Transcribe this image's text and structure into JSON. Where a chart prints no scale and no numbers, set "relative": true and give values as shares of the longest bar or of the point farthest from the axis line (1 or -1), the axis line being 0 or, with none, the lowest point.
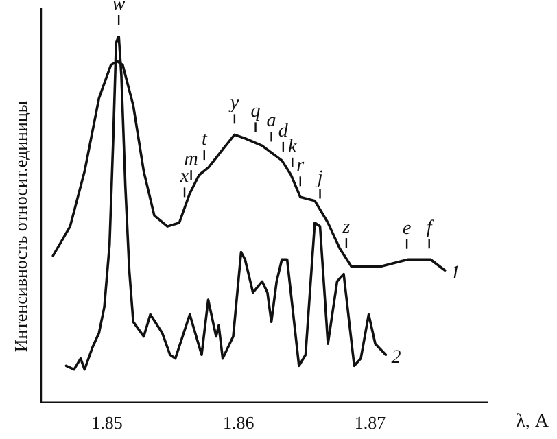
{
  "chart_data": {
    "type": "line",
    "relative": true,
    "xlabel": "λ, A",
    "ylabel": "Интенсивность относит.единицы",
    "xlim": [
      1.845,
      1.879
    ],
    "xticks": [
      1.85,
      1.86,
      1.87
    ],
    "grid": false,
    "marker": "none",
    "line_style": "solid",
    "series": [
      {
        "name": "1",
        "color": "#111111",
        "x": [
          1.8459,
          1.8472,
          1.8483,
          1.8494,
          1.8503,
          1.8508,
          1.8512,
          1.852,
          1.8528,
          1.8536,
          1.8546,
          1.8555,
          1.8563,
          1.857,
          1.8577,
          1.8588,
          1.8597,
          1.8605,
          1.8618,
          1.8633,
          1.864,
          1.8647,
          1.8658,
          1.8668,
          1.8677,
          1.8686,
          1.8707,
          1.8729,
          1.8746,
          1.8757
        ],
        "values": [
          0.4,
          0.48,
          0.63,
          0.83,
          0.92,
          0.93,
          0.92,
          0.81,
          0.63,
          0.51,
          0.48,
          0.49,
          0.57,
          0.62,
          0.64,
          0.69,
          0.73,
          0.72,
          0.7,
          0.66,
          0.62,
          0.56,
          0.55,
          0.49,
          0.42,
          0.37,
          0.37,
          0.39,
          0.39,
          0.36
        ]
      },
      {
        "name": "2",
        "color": "#111111",
        "x": [
          1.8469,
          1.8475,
          1.848,
          1.8483,
          1.8489,
          1.8494,
          1.8498,
          1.8502,
          1.8505,
          1.8507,
          1.8509,
          1.8511,
          1.8514,
          1.8517,
          1.852,
          1.8528,
          1.8533,
          1.8542,
          1.8548,
          1.8552,
          1.8563,
          1.8572,
          1.8577,
          1.8583,
          1.8585,
          1.8588,
          1.8596,
          1.8602,
          1.8605,
          1.8611,
          1.8618,
          1.8622,
          1.8625,
          1.8629,
          1.8633,
          1.8637,
          1.8646,
          1.8651,
          1.8658,
          1.8662,
          1.8668,
          1.8675,
          1.868,
          1.8688,
          1.8693,
          1.8699,
          1.8704,
          1.8712
        ],
        "values": [
          0.1,
          0.09,
          0.12,
          0.09,
          0.15,
          0.19,
          0.26,
          0.43,
          0.74,
          0.98,
          1.0,
          0.89,
          0.59,
          0.36,
          0.22,
          0.18,
          0.24,
          0.19,
          0.13,
          0.12,
          0.24,
          0.13,
          0.28,
          0.18,
          0.21,
          0.12,
          0.18,
          0.41,
          0.39,
          0.3,
          0.33,
          0.3,
          0.22,
          0.33,
          0.39,
          0.39,
          0.1,
          0.13,
          0.49,
          0.48,
          0.16,
          0.33,
          0.35,
          0.1,
          0.12,
          0.24,
          0.16,
          0.13
        ]
      }
    ],
    "ref_lines": [
      {
        "axis": "x",
        "value": 1.8509,
        "label": "w"
      },
      {
        "axis": "x",
        "value": 1.8559,
        "label": "x"
      },
      {
        "axis": "x",
        "value": 1.8564,
        "label": "m"
      },
      {
        "axis": "x",
        "value": 1.8574,
        "label": "t"
      },
      {
        "axis": "x",
        "value": 1.8597,
        "label": "y"
      },
      {
        "axis": "x",
        "value": 1.8613,
        "label": "q"
      },
      {
        "axis": "x",
        "value": 1.8625,
        "label": "a"
      },
      {
        "axis": "x",
        "value": 1.8634,
        "label": "d"
      },
      {
        "axis": "x",
        "value": 1.8641,
        "label": "k"
      },
      {
        "axis": "x",
        "value": 1.8647,
        "label": "r"
      },
      {
        "axis": "x",
        "value": 1.8662,
        "label": "j"
      },
      {
        "axis": "x",
        "value": 1.8682,
        "label": "z"
      },
      {
        "axis": "x",
        "value": 1.8728,
        "label": "e"
      },
      {
        "axis": "x",
        "value": 1.8745,
        "label": "f"
      }
    ]
  }
}
